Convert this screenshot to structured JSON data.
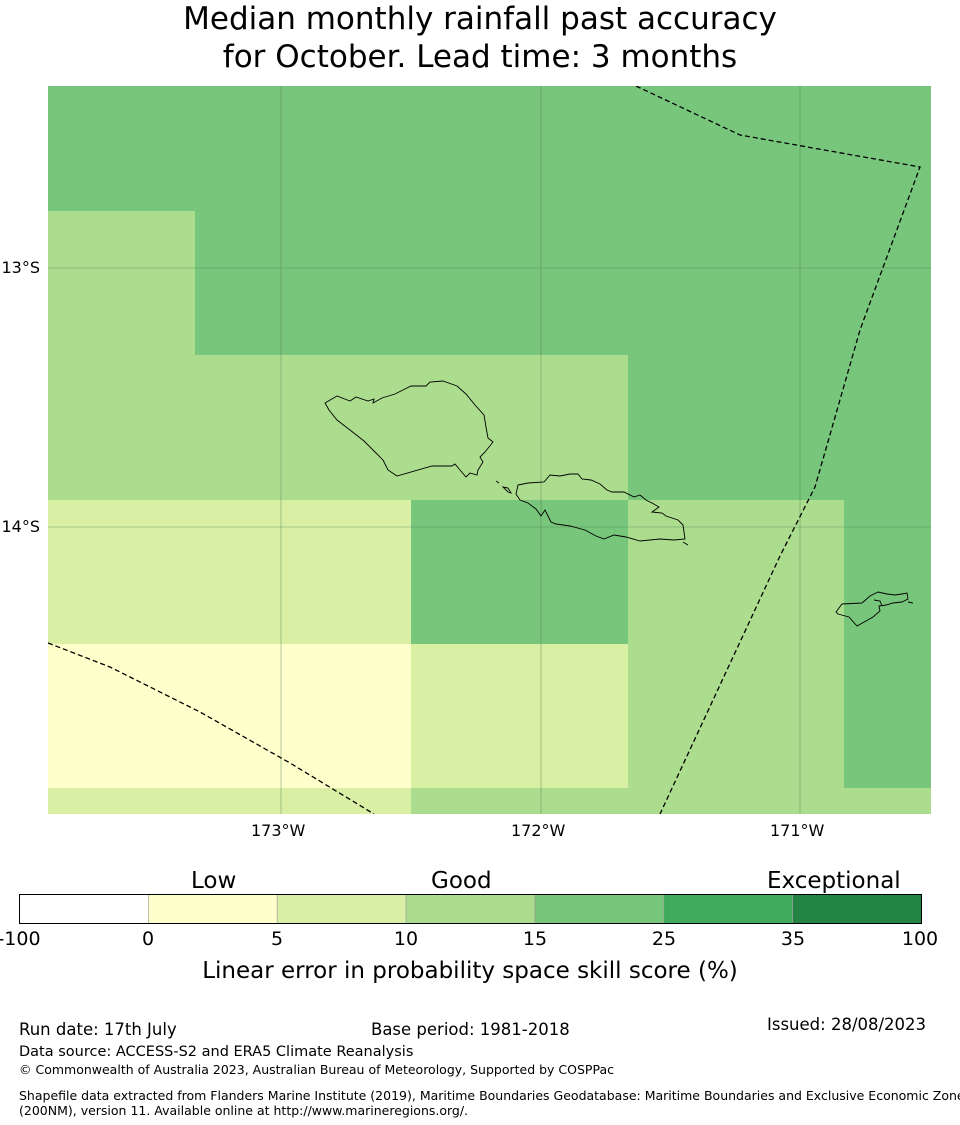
{
  "title": {
    "line1": "Median monthly rainfall past accuracy",
    "line2": "for October. Lead time: 3 months"
  },
  "map": {
    "lat_labels": [
      "13°S",
      "14°S"
    ],
    "lon_labels": [
      "173°W",
      "172°W",
      "171°W"
    ],
    "colors": {
      "ocean_top": "#78c67b",
      "light_green": "#acdd8e",
      "pale_green": "#d9efa3",
      "pale_yellow": "#ffffcc",
      "mid_green": "#78c67b"
    }
  },
  "colorbar": {
    "categories": [
      "Low",
      "Good",
      "Exceptional"
    ],
    "ticks": [
      "-100",
      "0",
      "5",
      "10",
      "15",
      "25",
      "35",
      "100"
    ],
    "colors": [
      "#ffffff",
      "#ffffcc",
      "#d9efa3",
      "#acdd8e",
      "#78c67b",
      "#41ab5d",
      "#238443"
    ],
    "title": "Linear error in probability space skill score (%)"
  },
  "footer": {
    "run_date": "Run date: 17th July",
    "base_period": "Base period: 1981-2018",
    "issued": "Issued: 28/08/2023",
    "data_source": "Data source: ACCESS-S2 and ERA5 Climate Reanalysis",
    "copyright": "© Commonwealth of Australia 2023, Australian Bureau of Meteorology, Supported by COSPPac",
    "shapefile_line1": "Shapefile data extracted from Flanders Marine Institute (2019), Maritime Boundaries Geodatabase: Maritime Boundaries and Exclusive Economic Zones",
    "shapefile_line2": "(200NM), version 11. Available online at http://www.marineregions.org/."
  }
}
